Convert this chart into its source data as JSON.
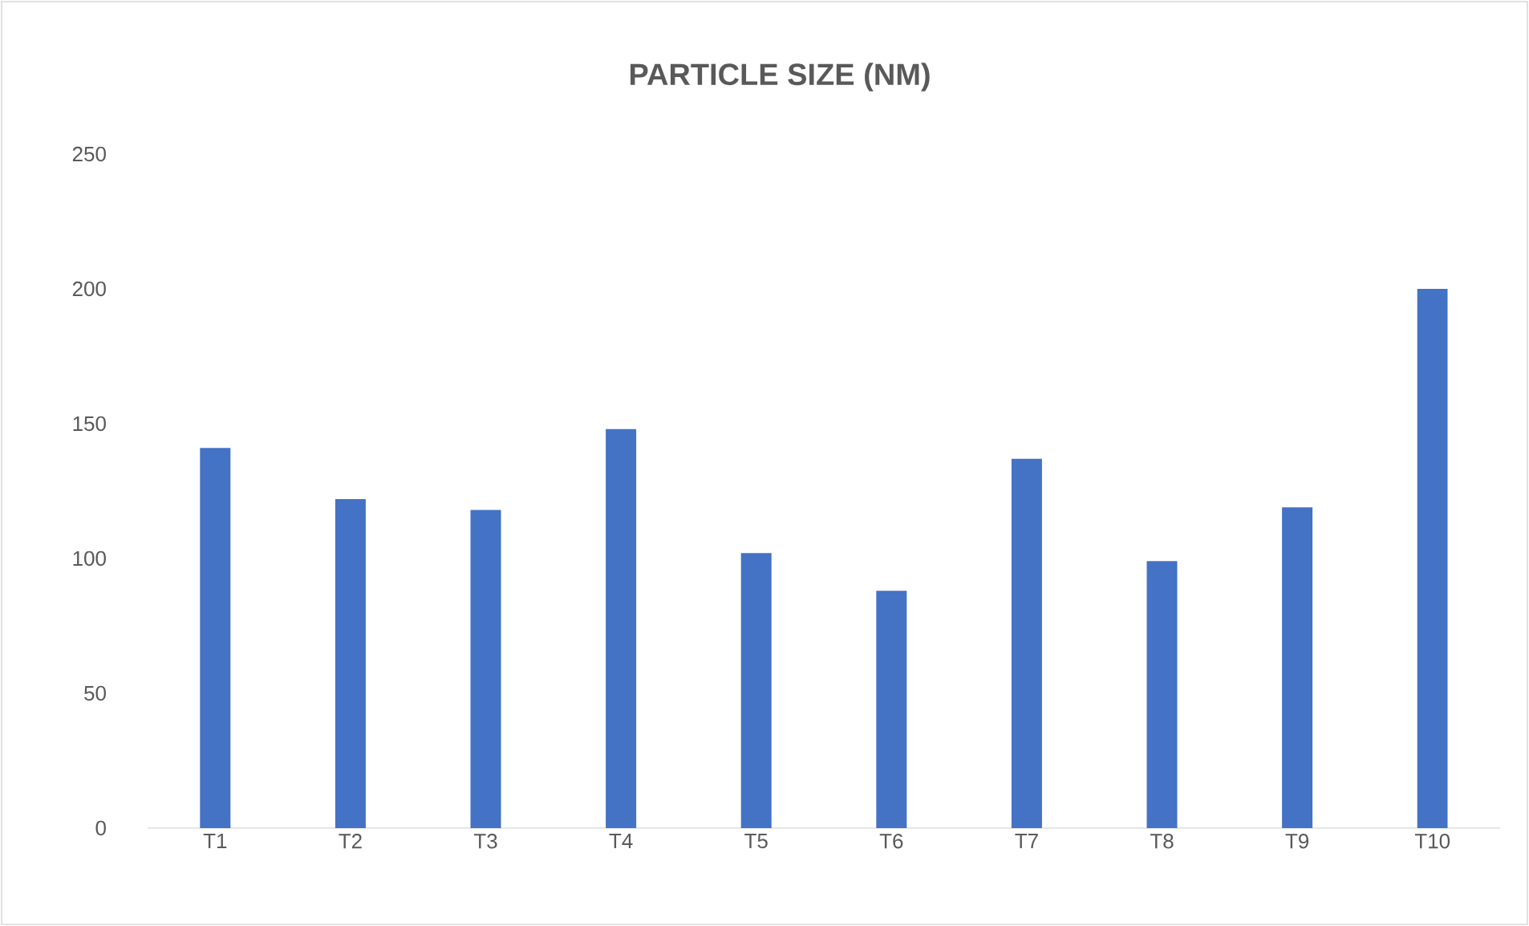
{
  "chart_data": {
    "type": "bar",
    "title": "PARTICLE SIZE (NM)",
    "categories": [
      "T1",
      "T2",
      "T3",
      "T4",
      "T5",
      "T6",
      "T7",
      "T8",
      "T9",
      "T10"
    ],
    "values": [
      141,
      122,
      118,
      148,
      102,
      88,
      137,
      99,
      119,
      200
    ],
    "color": "#4472c4",
    "ylim": [
      0,
      250
    ],
    "yticks": [
      0,
      50,
      100,
      150,
      200,
      250
    ],
    "grid": false
  }
}
